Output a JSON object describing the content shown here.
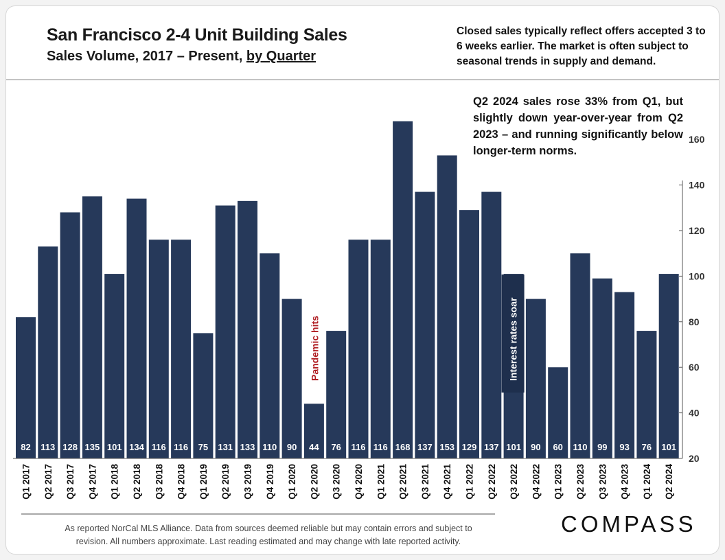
{
  "header": {
    "title": "San Francisco 2-4 Unit Building Sales",
    "subtitle_main": "Sales Volume, 2017 – Present, ",
    "subtitle_link": "by Quarter",
    "note": "Closed sales typically reflect offers accepted 3 to 6 weeks earlier. The market is often subject to seasonal trends in supply and demand."
  },
  "annotations": {
    "summary": "Q2 2024 sales rose 33% from Q1, but slightly down year-over-year from Q2 2023 – and running significantly below longer-term norms.",
    "pandemic": "Pandemic hits",
    "rates": "Interest rates soar"
  },
  "footer": {
    "line1": "As reported NorCal MLS Alliance. Data from sources deemed reliable but may contain errors and subject to",
    "line2": "revision. All numbers approximate.  Last reading estimated and may change with late reported activity."
  },
  "logo": {
    "text": "COMPASS"
  },
  "colors": {
    "bar": "#26395a",
    "label": "#ffffff",
    "annotation_red": "#b01e23",
    "axis": "#555555",
    "rate_box": "#1e2f4d"
  },
  "chart_data": {
    "type": "bar",
    "categories": [
      "Q1 2017",
      "Q2 2017",
      "Q3 2017",
      "Q4 2017",
      "Q1 2018",
      "Q2 2018",
      "Q3 2018",
      "Q4 2018",
      "Q1 2019",
      "Q2 2019",
      "Q3 2019",
      "Q4 2019",
      "Q1 2020",
      "Q2 2020",
      "Q3 2020",
      "Q4 2020",
      "Q1 2021",
      "Q2 2021",
      "Q3 2021",
      "Q4 2021",
      "Q1 2022",
      "Q2 2022",
      "Q3 2022",
      "Q4 2022",
      "Q1 2023",
      "Q2 2023",
      "Q3 2023",
      "Q4 2023",
      "Q1 2024",
      "Q2 2024"
    ],
    "values": [
      82,
      113,
      128,
      135,
      101,
      134,
      116,
      116,
      75,
      131,
      133,
      110,
      90,
      44,
      76,
      116,
      116,
      168,
      137,
      153,
      129,
      137,
      101,
      90,
      60,
      110,
      99,
      93,
      76,
      101
    ],
    "title": "San Francisco 2-4 Unit Building Sales",
    "ylim": [
      20,
      170
    ],
    "yticks": [
      20,
      40,
      60,
      80,
      100,
      120,
      140,
      160
    ],
    "yaxis_position": "right"
  }
}
